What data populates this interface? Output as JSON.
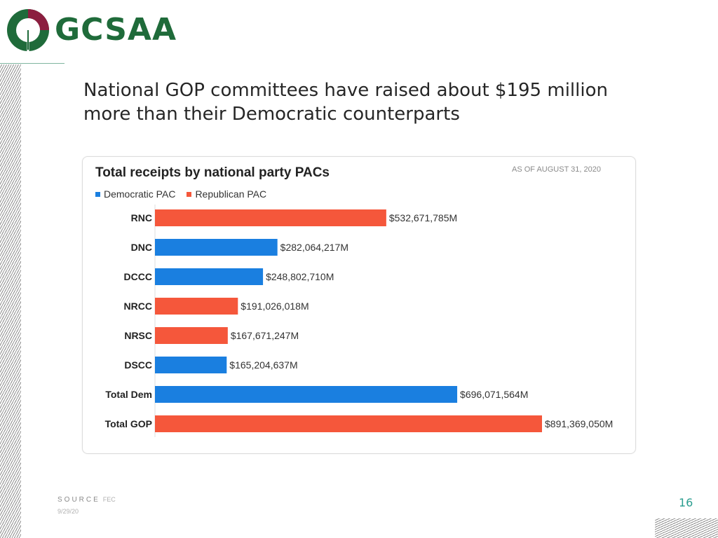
{
  "brand": {
    "name": "GCSAA"
  },
  "headline": "National GOP committees have raised about $195 million more than their Democratic counterparts",
  "colors": {
    "democratic": "#1a7fe0",
    "republican": "#f5573b",
    "brand_green": "#1f6b3a",
    "brand_red": "#8b1e3f",
    "page_number": "#2a9d8f"
  },
  "chart_data": {
    "type": "bar",
    "orientation": "horizontal",
    "title": "Total receipts by national party PACs",
    "as_of": "AS OF AUGUST 31, 2020",
    "legend": [
      {
        "label": "Democratic PAC",
        "key": "democratic"
      },
      {
        "label": "Republican PAC",
        "key": "republican"
      }
    ],
    "legend_position": "top-left",
    "grid": false,
    "xlim": [
      0,
      891369050
    ],
    "categories": [
      "RNC",
      "DNC",
      "DCCC",
      "NRCC",
      "NRSC",
      "DSCC",
      "Total Dem",
      "Total GOP"
    ],
    "values": [
      532671785,
      282064217,
      248802710,
      191026018,
      167671247,
      165204637,
      696071564,
      891369050
    ],
    "party": [
      "republican",
      "democratic",
      "democratic",
      "republican",
      "republican",
      "democratic",
      "democratic",
      "republican"
    ],
    "data_labels": [
      "$532,671,785M",
      "$282,064,217M",
      "$248,802,710M",
      "$191,026,018M",
      "$167,671,247M",
      "$165,204,637M",
      "$696,071,564M",
      "$891,369,050M"
    ]
  },
  "footer": {
    "source_label": "SOURCE",
    "source_value": "FEC",
    "date": "9/29/20",
    "page_number": "16"
  }
}
